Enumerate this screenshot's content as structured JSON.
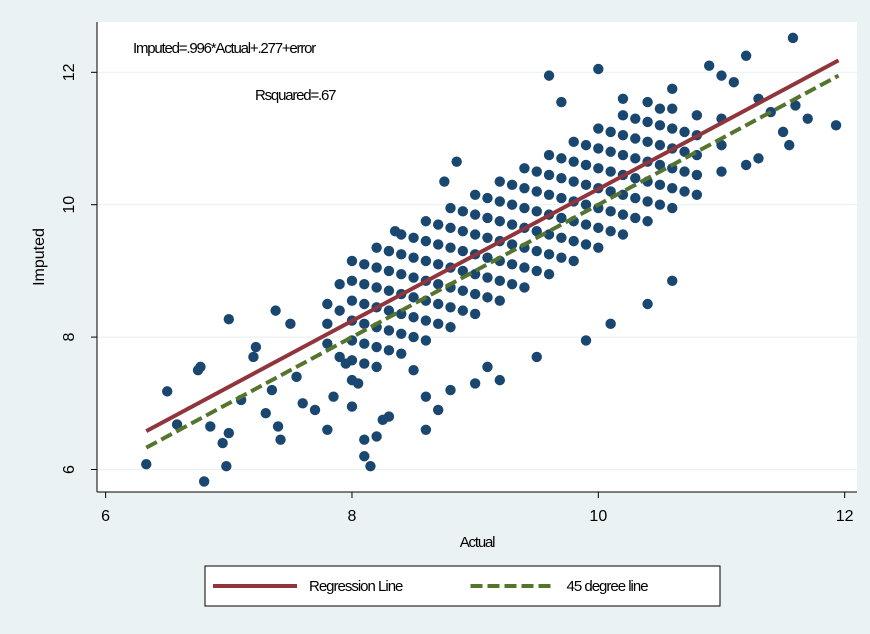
{
  "chart_data": {
    "type": "scatter",
    "annotations": [
      "Imputed=.996*Actual+.277+error",
      "Rsquared=.67"
    ],
    "xlabel": "Actual",
    "ylabel": "Imputed",
    "xlim": [
      5.93,
      12.1
    ],
    "ylim": [
      5.66,
      12.76
    ],
    "xticks": [
      6,
      8,
      10,
      12
    ],
    "yticks": [
      6,
      8,
      10,
      12
    ],
    "grid": true,
    "legend": "bottom",
    "series": [
      {
        "type": "scatter",
        "color": "#1a476f",
        "x": [
          8.0,
          8.0,
          8.0,
          8.0,
          8.0,
          8.0,
          8.0,
          8.2,
          8.2,
          8.2,
          8.2,
          8.2,
          8.2,
          8.2,
          8.4,
          8.4,
          8.4,
          8.4,
          8.4,
          8.4,
          8.4,
          8.6,
          8.6,
          8.6,
          8.6,
          8.6,
          8.6,
          8.6,
          8.8,
          8.8,
          8.8,
          8.8,
          8.8,
          8.8,
          8.8,
          9.0,
          9.0,
          9.0,
          9.0,
          9.0,
          9.0,
          9.0,
          9.2,
          9.2,
          9.2,
          9.2,
          9.2,
          9.2,
          9.2,
          9.4,
          9.4,
          9.4,
          9.4,
          9.4,
          9.4,
          9.4,
          9.6,
          9.6,
          9.6,
          9.6,
          9.6,
          9.6,
          9.6,
          9.8,
          9.8,
          9.8,
          9.8,
          9.8,
          9.8,
          9.8,
          10.0,
          10.0,
          10.0,
          10.0,
          10.0,
          10.0,
          10.0,
          10.2,
          10.2,
          10.2,
          10.2,
          10.2,
          10.2,
          10.2,
          10.4,
          10.4,
          10.4,
          10.4,
          10.4,
          10.4,
          10.4,
          10.6,
          10.6,
          10.6,
          10.6,
          10.6,
          10.6,
          10.6,
          10.8,
          10.8,
          10.8,
          10.8,
          10.8,
          8.1,
          8.1,
          8.1,
          8.1,
          8.1,
          8.1,
          8.3,
          8.3,
          8.3,
          8.3,
          8.3,
          8.3,
          8.5,
          8.5,
          8.5,
          8.5,
          8.5,
          8.5,
          8.7,
          8.7,
          8.7,
          8.7,
          8.7,
          8.7,
          8.9,
          8.9,
          8.9,
          8.9,
          8.9,
          8.9,
          9.1,
          9.1,
          9.1,
          9.1,
          9.1,
          9.1,
          9.3,
          9.3,
          9.3,
          9.3,
          9.3,
          9.3,
          9.5,
          9.5,
          9.5,
          9.5,
          9.5,
          9.5,
          9.7,
          9.7,
          9.7,
          9.7,
          9.7,
          9.7,
          9.9,
          9.9,
          9.9,
          9.9,
          9.9,
          9.9,
          10.1,
          10.1,
          10.1,
          10.1,
          10.1,
          10.1,
          10.3,
          10.3,
          10.3,
          10.3,
          10.3,
          10.3,
          10.5,
          10.5,
          10.5,
          10.5,
          10.5,
          10.7,
          10.7,
          10.7,
          10.7,
          7.8,
          7.8,
          7.8,
          7.9,
          7.9,
          7.9,
          11.0,
          11.0,
          11.0,
          6.33,
          6.5,
          6.58,
          6.75,
          6.77,
          6.8,
          6.85,
          6.95,
          6.98,
          7.0,
          7.0,
          7.1,
          7.2,
          7.22,
          7.3,
          7.38,
          7.35,
          7.4,
          7.42,
          7.5,
          7.55,
          7.6,
          7.7,
          7.8,
          7.85,
          7.95,
          8.0,
          8.05,
          8.1,
          8.1,
          8.15,
          8.2,
          8.25,
          8.3,
          8.3,
          8.35,
          8.5,
          8.6,
          8.6,
          8.7,
          8.75,
          8.8,
          8.85,
          9.0,
          9.1,
          9.2,
          9.5,
          9.6,
          9.7,
          9.9,
          10.0,
          10.1,
          10.2,
          10.4,
          10.5,
          10.6,
          10.9,
          11.0,
          11.1,
          11.2,
          11.3,
          11.4,
          11.5,
          11.58,
          11.6,
          11.55,
          11.2,
          11.3,
          11.93,
          11.7
        ],
        "values": [
          7.35,
          7.65,
          7.95,
          8.25,
          8.55,
          8.85,
          9.15,
          7.55,
          7.85,
          8.15,
          8.45,
          8.75,
          9.05,
          9.35,
          7.75,
          8.05,
          8.35,
          8.65,
          8.95,
          9.25,
          9.55,
          7.95,
          8.25,
          8.55,
          8.85,
          9.15,
          9.45,
          9.75,
          8.15,
          8.45,
          8.75,
          9.05,
          9.35,
          9.65,
          9.95,
          8.35,
          8.65,
          8.95,
          9.25,
          9.55,
          9.85,
          10.15,
          8.55,
          8.85,
          9.15,
          9.45,
          9.75,
          10.05,
          10.35,
          8.75,
          9.05,
          9.35,
          9.65,
          9.95,
          10.25,
          10.55,
          8.95,
          9.25,
          9.55,
          9.85,
          10.15,
          10.45,
          10.75,
          9.15,
          9.45,
          9.75,
          10.05,
          10.35,
          10.65,
          10.95,
          9.35,
          9.65,
          9.95,
          10.25,
          10.55,
          10.85,
          11.15,
          9.55,
          9.85,
          10.15,
          10.45,
          10.75,
          11.05,
          11.35,
          9.75,
          10.05,
          10.35,
          10.65,
          10.95,
          11.25,
          11.55,
          9.95,
          10.25,
          10.55,
          10.85,
          11.15,
          11.45,
          11.75,
          10.15,
          10.45,
          10.75,
          11.05,
          11.35,
          7.6,
          7.9,
          8.2,
          8.5,
          8.8,
          9.1,
          7.8,
          8.1,
          8.4,
          8.7,
          9.0,
          9.3,
          8.0,
          8.3,
          8.6,
          8.9,
          9.2,
          9.5,
          8.2,
          8.5,
          8.8,
          9.1,
          9.4,
          9.7,
          8.4,
          8.7,
          9.0,
          9.3,
          9.6,
          9.9,
          8.6,
          8.9,
          9.2,
          9.5,
          9.8,
          10.1,
          8.8,
          9.1,
          9.4,
          9.7,
          10.0,
          10.3,
          9.0,
          9.3,
          9.6,
          9.9,
          10.2,
          10.5,
          9.2,
          9.5,
          9.8,
          10.1,
          10.4,
          10.7,
          9.4,
          9.7,
          10.0,
          10.3,
          10.6,
          10.9,
          9.6,
          9.9,
          10.2,
          10.5,
          10.8,
          11.1,
          9.8,
          10.1,
          10.4,
          10.7,
          11.0,
          11.3,
          10.0,
          10.3,
          10.6,
          10.9,
          11.2,
          10.2,
          10.5,
          10.8,
          11.1,
          7.9,
          8.2,
          8.5,
          7.7,
          8.4,
          8.8,
          10.5,
          10.9,
          11.3,
          6.08,
          7.18,
          6.68,
          7.5,
          7.55,
          5.82,
          6.65,
          6.4,
          6.05,
          6.55,
          8.27,
          7.05,
          7.7,
          7.85,
          6.85,
          8.4,
          7.2,
          6.65,
          6.45,
          8.2,
          7.4,
          7.0,
          6.9,
          6.6,
          7.1,
          7.6,
          6.95,
          7.3,
          6.45,
          6.2,
          6.05,
          6.5,
          6.75,
          6.8,
          9.3,
          9.6,
          7.5,
          7.1,
          6.6,
          6.9,
          10.35,
          7.2,
          10.65,
          7.3,
          7.55,
          7.35,
          7.7,
          11.95,
          11.55,
          7.95,
          12.05,
          8.2,
          11.6,
          8.5,
          11.45,
          8.85,
          12.1,
          11.95,
          11.85,
          12.25,
          11.6,
          11.4,
          11.1,
          12.52,
          11.5,
          10.9,
          10.6,
          10.7,
          11.2,
          11.3
        ]
      },
      {
        "type": "line",
        "name": "Regression Line",
        "color": "#90353b",
        "dashed": false,
        "x": [
          6.33,
          11.95
        ],
        "values": [
          6.58,
          12.18
        ]
      },
      {
        "type": "line",
        "name": "45 degree line",
        "color": "#55752f",
        "dashed": true,
        "x": [
          6.33,
          11.95
        ],
        "values": [
          6.33,
          11.95
        ]
      }
    ]
  }
}
